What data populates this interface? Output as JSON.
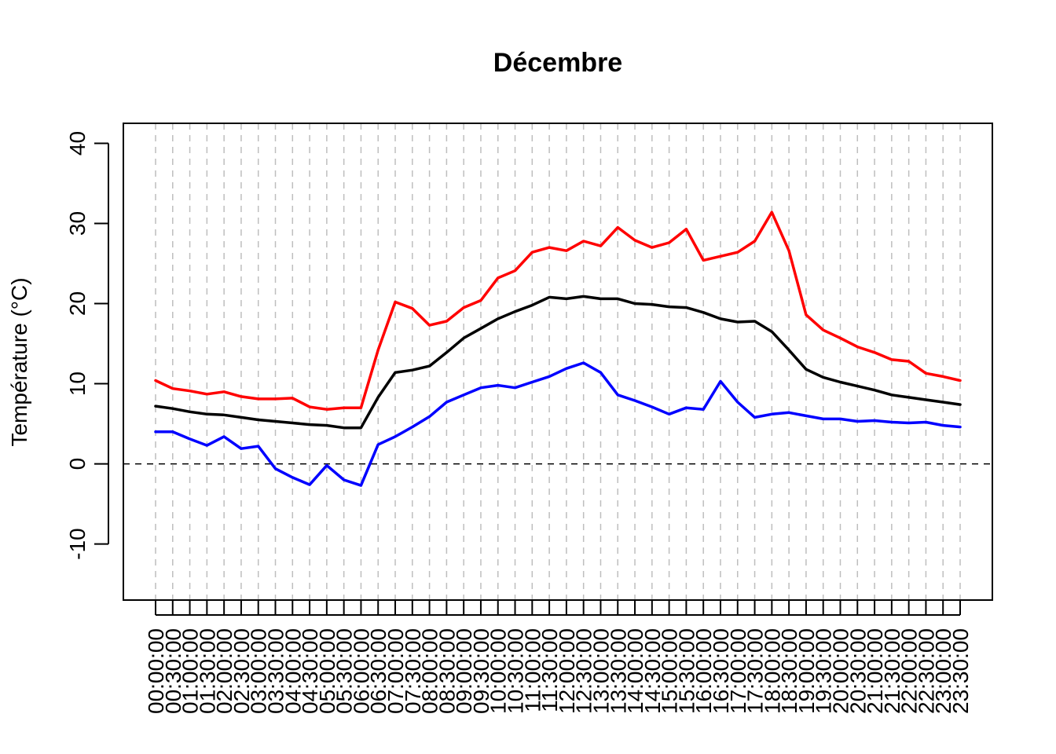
{
  "chart_data": {
    "type": "line",
    "title": "Décembre",
    "xlabel": "",
    "ylabel": "Température (°C)",
    "ylim": [
      -17,
      42.5
    ],
    "yticks": [
      -10,
      0,
      10,
      20,
      30,
      40
    ],
    "ytick_labels": [
      "-10",
      "0",
      "10",
      "20",
      "30",
      "40"
    ],
    "reference_line": 0,
    "grid": "vertical dashed at each category",
    "categories": [
      "00:00:00",
      "00:30:00",
      "01:00:00",
      "01:30:00",
      "02:00:00",
      "02:30:00",
      "03:00:00",
      "03:30:00",
      "04:00:00",
      "04:30:00",
      "05:00:00",
      "05:30:00",
      "06:00:00",
      "06:30:00",
      "07:00:00",
      "07:30:00",
      "08:00:00",
      "08:30:00",
      "09:00:00",
      "09:30:00",
      "10:00:00",
      "10:30:00",
      "11:00:00",
      "11:30:00",
      "12:00:00",
      "12:30:00",
      "13:00:00",
      "13:30:00",
      "14:00:00",
      "14:30:00",
      "15:00:00",
      "15:30:00",
      "16:00:00",
      "16:30:00",
      "17:00:00",
      "17:30:00",
      "18:00:00",
      "18:30:00",
      "19:00:00",
      "19:30:00",
      "20:00:00",
      "20:30:00",
      "21:00:00",
      "21:30:00",
      "22:00:00",
      "22:30:00",
      "23:00:00",
      "23:30:00"
    ],
    "series": [
      {
        "color": "#ff0000",
        "values": [
          10.4,
          9.4,
          9.1,
          8.7,
          9.0,
          8.4,
          8.1,
          8.1,
          8.2,
          7.1,
          6.8,
          7.0,
          7.0,
          14.2,
          20.2,
          19.4,
          17.3,
          17.8,
          19.5,
          20.4,
          23.2,
          24.1,
          26.4,
          27.0,
          26.6,
          27.8,
          27.2,
          29.5,
          27.9,
          27.0,
          27.6,
          29.3,
          25.4,
          25.9,
          26.4,
          27.8,
          31.4,
          26.6,
          18.6,
          16.7,
          15.7,
          14.6,
          13.9,
          13.0,
          12.8,
          11.3,
          10.9,
          10.4
        ]
      },
      {
        "color": "#000000",
        "values": [
          7.2,
          6.9,
          6.5,
          6.2,
          6.1,
          5.8,
          5.5,
          5.3,
          5.1,
          4.9,
          4.8,
          4.5,
          4.5,
          8.3,
          11.4,
          11.7,
          12.2,
          13.9,
          15.7,
          16.9,
          18.1,
          19.0,
          19.8,
          20.8,
          20.6,
          20.9,
          20.6,
          20.6,
          20.0,
          19.9,
          19.6,
          19.5,
          18.9,
          18.1,
          17.7,
          17.8,
          16.5,
          14.2,
          11.8,
          10.8,
          10.2,
          9.7,
          9.2,
          8.6,
          8.3,
          8.0,
          7.7,
          7.4
        ]
      },
      {
        "color": "#0000ff",
        "values": [
          4.0,
          4.0,
          3.1,
          2.3,
          3.4,
          1.9,
          2.2,
          -0.6,
          -1.7,
          -2.6,
          -0.2,
          -2.0,
          -2.7,
          2.4,
          3.4,
          4.6,
          5.9,
          7.7,
          8.6,
          9.5,
          9.8,
          9.5,
          10.2,
          10.9,
          11.9,
          12.6,
          11.4,
          8.6,
          7.9,
          7.1,
          6.2,
          7.0,
          6.8,
          10.3,
          7.7,
          5.8,
          6.2,
          6.4,
          6.0,
          5.6,
          5.6,
          5.3,
          5.4,
          5.2,
          5.1,
          5.2,
          4.8,
          4.6
        ]
      }
    ]
  }
}
